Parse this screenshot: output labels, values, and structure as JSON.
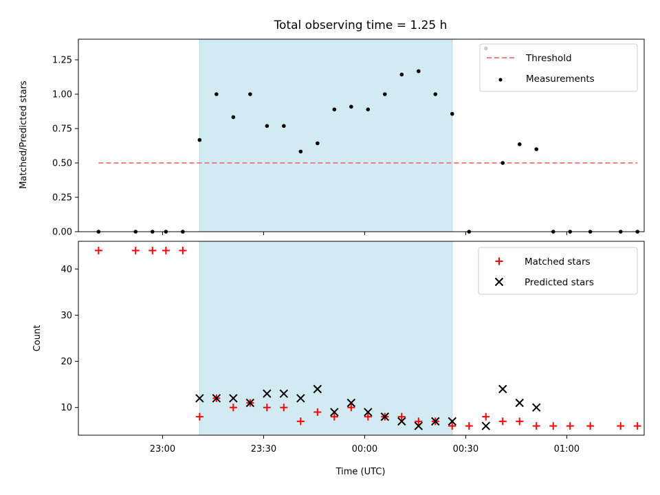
{
  "chart_data": [
    {
      "type": "scatter",
      "title": "Total observing time = 1.25 h",
      "ylabel": "Matched/Predicted stars",
      "xlabel": "",
      "ylim": [
        0,
        1.4
      ],
      "yticks": [
        0.0,
        0.25,
        0.5,
        0.75,
        1.0,
        1.25
      ],
      "ytick_labels": [
        "0.00",
        "0.25",
        "0.50",
        "0.75",
        "1.00",
        "1.25"
      ],
      "shaded_span": [
        "23:11",
        "00:26"
      ],
      "shade_color": "#add8e6",
      "legend_position": "upper right",
      "series": [
        {
          "name": "Threshold",
          "kind": "dashed-line",
          "color": "#f08080",
          "x": [
            "22:41",
            "01:21"
          ],
          "y": [
            0.5,
            0.5
          ]
        },
        {
          "name": "Measurements",
          "kind": "dots",
          "color": "#000000",
          "x": [
            "22:41",
            "22:52",
            "22:57",
            "23:01",
            "23:06",
            "23:11",
            "23:16",
            "23:21",
            "23:26",
            "23:31",
            "23:36",
            "23:41",
            "23:46",
            "23:51",
            "23:56",
            "00:01",
            "00:06",
            "00:11",
            "00:16",
            "00:21",
            "00:26",
            "00:31",
            "00:36",
            "00:41",
            "00:46",
            "00:51",
            "00:56",
            "01:01",
            "01:07",
            "01:16",
            "01:21"
          ],
          "y": [
            0,
            0,
            0,
            0,
            0,
            0.667,
            1.0,
            0.833,
            1.0,
            0.769,
            0.769,
            0.583,
            0.643,
            0.889,
            0.909,
            0.889,
            1.0,
            1.143,
            1.167,
            1.0,
            0.857,
            0,
            1.333,
            0.5,
            0.636,
            0.6,
            0,
            0,
            0,
            0,
            0
          ]
        }
      ]
    },
    {
      "type": "scatter",
      "title": "",
      "ylabel": "Count",
      "xlabel": "Time (UTC)",
      "ylim": [
        4,
        46
      ],
      "yticks": [
        10,
        20,
        30,
        40
      ],
      "ytick_labels": [
        "10",
        "20",
        "30",
        "40"
      ],
      "xticks": [
        "23:00",
        "23:30",
        "00:00",
        "00:30",
        "01:00"
      ],
      "xtick_labels": [
        "23:00",
        "23:30",
        "00:00",
        "00:30",
        "01:00"
      ],
      "shaded_span": [
        "23:11",
        "00:26"
      ],
      "shade_color": "#add8e6",
      "legend_position": "upper right",
      "series": [
        {
          "name": "Matched stars",
          "marker": "plus",
          "color": "#ff0000",
          "x": [
            "22:41",
            "22:52",
            "22:57",
            "23:01",
            "23:06",
            "23:11",
            "23:16",
            "23:21",
            "23:26",
            "23:31",
            "23:36",
            "23:41",
            "23:46",
            "23:51",
            "23:56",
            "00:01",
            "00:06",
            "00:11",
            "00:16",
            "00:21",
            "00:26",
            "00:31",
            "00:36",
            "00:41",
            "00:46",
            "00:51",
            "00:56",
            "01:01",
            "01:07",
            "01:16",
            "01:21"
          ],
          "y": [
            44,
            44,
            44,
            44,
            44,
            8,
            12,
            10,
            11,
            10,
            10,
            7,
            9,
            8,
            10,
            8,
            8,
            8,
            7,
            7,
            6,
            6,
            8,
            7,
            7,
            6,
            6,
            6,
            6,
            6,
            6
          ]
        },
        {
          "name": "Predicted stars",
          "marker": "x",
          "color": "#000000",
          "x": [
            "23:11",
            "23:16",
            "23:21",
            "23:26",
            "23:31",
            "23:36",
            "23:41",
            "23:46",
            "23:51",
            "23:56",
            "00:01",
            "00:06",
            "00:11",
            "00:16",
            "00:21",
            "00:26",
            "00:36",
            "00:41",
            "00:46",
            "00:51"
          ],
          "y": [
            12,
            12,
            12,
            11,
            13,
            13,
            12,
            14,
            9,
            11,
            9,
            8,
            7,
            6,
            7,
            7,
            6,
            14,
            11,
            10
          ]
        }
      ]
    }
  ]
}
